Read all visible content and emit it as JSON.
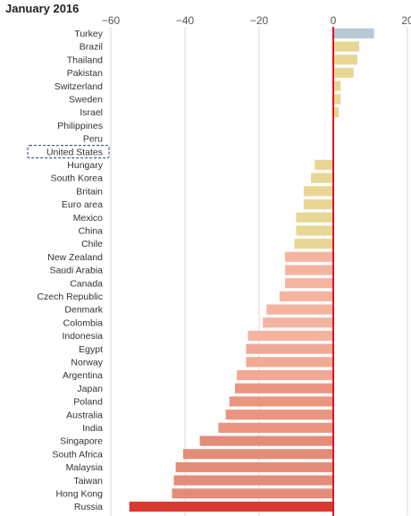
{
  "chart_data": {
    "type": "bar",
    "orientation": "horizontal",
    "title": "January 2016",
    "xlabel": "",
    "ylabel": "",
    "xlim": [
      -60,
      20
    ],
    "xticks": [
      -60,
      -40,
      -20,
      0,
      20
    ],
    "grid": true,
    "legend": "none",
    "highlighted_category": "United States",
    "categories": [
      "Turkey",
      "Brazil",
      "Thailand",
      "Pakistan",
      "Switzerland",
      "Sweden",
      "Israel",
      "Philippines",
      "Peru",
      "United States",
      "Hungary",
      "South Korea",
      "Britain",
      "Euro area",
      "Mexico",
      "China",
      "Chile",
      "New Zealand",
      "Saudi Arabia",
      "Canada",
      "Czech Republic",
      "Denmark",
      "Colombia",
      "Indonesia",
      "Egypt",
      "Norway",
      "Argentina",
      "Japan",
      "Poland",
      "Australia",
      "India",
      "Singapore",
      "South Africa",
      "Malaysia",
      "Taiwan",
      "Hong Kong",
      "Russia"
    ],
    "values": [
      11,
      7,
      6.5,
      5.5,
      2,
      2,
      1.5,
      0,
      0,
      0,
      -5,
      -6,
      -8,
      -8,
      -10,
      -10,
      -10.5,
      -13,
      -13,
      -13,
      -14.5,
      -18,
      -19,
      -23,
      -23.5,
      -23.5,
      -26,
      -26.5,
      -28,
      -29,
      -31,
      -36,
      -40.5,
      -42.5,
      -43,
      -43.5,
      -55
    ],
    "bar_colors": [
      "#b7c9d3",
      "#e8d794",
      "#e8d794",
      "#e8d794",
      "#e8d794",
      "#e8d794",
      "#e8d794",
      "#e8d794",
      "#e8d794",
      "#e8d794",
      "#e8d794",
      "#e8d794",
      "#e8d794",
      "#e8d794",
      "#e8d794",
      "#e8d794",
      "#e8d794",
      "#f4b4a0",
      "#f4b4a0",
      "#f4b4a0",
      "#f4b4a0",
      "#f4b4a0",
      "#f4b4a0",
      "#f4b4a0",
      "#efa994",
      "#efa994",
      "#efa994",
      "#e99580",
      "#e99580",
      "#e99580",
      "#e99580",
      "#e38d79",
      "#e38d79",
      "#e38d79",
      "#e38d79",
      "#e38d79",
      "#d93a30"
    ],
    "zero_line_color": "#e3121e",
    "grid_color": "#d8d8d8"
  }
}
